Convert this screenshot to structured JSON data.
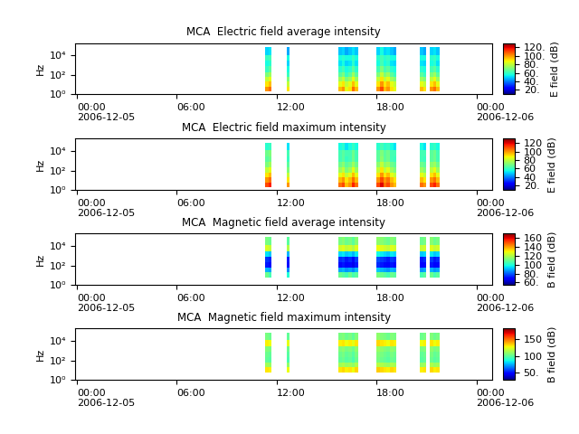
{
  "chart_data": [
    {
      "type": "heatmap",
      "title": "MCA  Electric field average intensity",
      "y_label": "Hz",
      "log": "y",
      "xlim": [
        -0.1,
        24.95
      ],
      "xticks": [
        {
          "value": 0,
          "label": "00:00\n2006-12-05"
        },
        {
          "value": 6,
          "label": "06:00"
        },
        {
          "value": 12,
          "label": "12:00"
        },
        {
          "value": 18,
          "label": "18:00"
        },
        {
          "value": 24,
          "label": "00:00\n2006-12-06"
        }
      ],
      "ylim": [
        1,
        200000
      ],
      "yticks": [
        {
          "value": 1,
          "label": "10⁰"
        },
        {
          "value": 100,
          "label": "10²"
        },
        {
          "value": 10000,
          "label": "10⁴"
        }
      ],
      "f_edges": [
        2,
        6,
        20,
        60,
        200,
        800,
        3000,
        12000,
        80000
      ],
      "segments": [
        [
          11.3,
          11.5,
          11.7
        ],
        [
          12.6,
          12.8
        ],
        [
          15.7,
          15.9,
          16.1,
          16.3,
          16.5,
          16.7,
          16.9
        ],
        [
          18.0,
          18.2,
          18.4,
          18.6,
          18.8,
          19.0,
          19.2
        ],
        [
          20.6,
          20.8,
          21.0
        ],
        [
          21.2,
          21.4,
          21.6,
          21.8
        ]
      ],
      "cells": [
        [
          100,
          105,
          90,
          95,
          100,
          85,
          90,
          105,
          95,
          100,
          110,
          95,
          100,
          90,
          85,
          95,
          90,
          100,
          105,
          95
        ],
        [
          90,
          95,
          80,
          85,
          90,
          80,
          85,
          95,
          85,
          90,
          100,
          90,
          95,
          85,
          80,
          85,
          80,
          90,
          95,
          85
        ],
        [
          80,
          85,
          70,
          75,
          80,
          70,
          75,
          85,
          75,
          80,
          90,
          80,
          85,
          75,
          70,
          75,
          70,
          80,
          85,
          75
        ],
        [
          70,
          75,
          60,
          65,
          70,
          60,
          65,
          75,
          65,
          70,
          80,
          70,
          75,
          65,
          60,
          65,
          60,
          70,
          75,
          65
        ],
        [
          60,
          65,
          55,
          58,
          62,
          55,
          58,
          65,
          58,
          62,
          70,
          62,
          65,
          58,
          55,
          58,
          55,
          62,
          65,
          58
        ],
        [
          55,
          58,
          50,
          52,
          55,
          50,
          52,
          58,
          52,
          55,
          62,
          55,
          58,
          52,
          50,
          52,
          50,
          55,
          58,
          52
        ],
        [
          60,
          62,
          55,
          55,
          58,
          55,
          55,
          60,
          55,
          58,
          62,
          58,
          60,
          55,
          55,
          55,
          55,
          58,
          60,
          55
        ],
        [
          50,
          52,
          45,
          48,
          50,
          45,
          48,
          52,
          48,
          50,
          55,
          50,
          52,
          48,
          45,
          48,
          45,
          50,
          52,
          48
        ]
      ],
      "colorbar_label": "E field (dB)",
      "colorbar_range": [
        10,
        130
      ],
      "colorbar_ticks": [
        {
          "value": 20,
          "label": "20."
        },
        {
          "value": 40,
          "label": "40."
        },
        {
          "value": 60,
          "label": "60."
        },
        {
          "value": 80,
          "label": "80."
        },
        {
          "value": 100,
          "label": "100."
        },
        {
          "value": 120,
          "label": "120."
        }
      ]
    },
    {
      "type": "heatmap",
      "title": "MCA  Electric field maximum intensity",
      "y_label": "Hz",
      "log": "y",
      "xlim": [
        -0.1,
        24.95
      ],
      "xticks": [
        {
          "value": 0,
          "label": "00:00\n2006-12-05"
        },
        {
          "value": 6,
          "label": "06:00"
        },
        {
          "value": 12,
          "label": "12:00"
        },
        {
          "value": 18,
          "label": "18:00"
        },
        {
          "value": 24,
          "label": "00:00\n2006-12-06"
        }
      ],
      "ylim": [
        1,
        200000
      ],
      "yticks": [
        {
          "value": 1,
          "label": "10⁰"
        },
        {
          "value": 100,
          "label": "10²"
        },
        {
          "value": 10000,
          "label": "10⁴"
        }
      ],
      "f_edges": [
        2,
        6,
        20,
        60,
        200,
        800,
        3000,
        12000,
        80000
      ],
      "segments": [
        [
          11.3,
          11.5,
          11.7
        ],
        [
          12.6,
          12.8
        ],
        [
          15.7,
          15.9,
          16.1,
          16.3,
          16.5,
          16.7,
          16.9
        ],
        [
          18.0,
          18.2,
          18.4,
          18.6,
          18.8,
          19.0,
          19.2
        ],
        [
          20.6,
          20.8,
          21.0
        ],
        [
          21.2,
          21.4,
          21.6,
          21.8
        ]
      ],
      "cells": [
        [
          110,
          115,
          100,
          105,
          110,
          95,
          100,
          115,
          105,
          110,
          120,
          105,
          110,
          100,
          95,
          105,
          100,
          110,
          115,
          105
        ],
        [
          100,
          105,
          90,
          95,
          100,
          90,
          95,
          105,
          95,
          100,
          110,
          100,
          105,
          95,
          90,
          95,
          90,
          100,
          105,
          95
        ],
        [
          90,
          95,
          80,
          85,
          90,
          80,
          85,
          95,
          85,
          90,
          100,
          90,
          95,
          85,
          80,
          85,
          80,
          90,
          95,
          85
        ],
        [
          80,
          85,
          70,
          75,
          80,
          70,
          75,
          85,
          75,
          80,
          90,
          80,
          85,
          75,
          70,
          75,
          70,
          80,
          85,
          75
        ],
        [
          70,
          75,
          65,
          68,
          72,
          65,
          68,
          75,
          68,
          72,
          80,
          72,
          75,
          68,
          65,
          68,
          65,
          72,
          75,
          68
        ],
        [
          65,
          68,
          60,
          62,
          65,
          60,
          62,
          68,
          62,
          65,
          72,
          65,
          68,
          62,
          60,
          62,
          60,
          65,
          68,
          62
        ],
        [
          68,
          70,
          62,
          62,
          65,
          62,
          62,
          68,
          62,
          65,
          70,
          65,
          68,
          62,
          62,
          62,
          62,
          65,
          68,
          62
        ],
        [
          58,
          60,
          52,
          55,
          58,
          52,
          55,
          60,
          55,
          58,
          62,
          58,
          60,
          55,
          52,
          55,
          52,
          58,
          60,
          55
        ]
      ],
      "colorbar_label": "E field (dB)",
      "colorbar_range": [
        10,
        130
      ],
      "colorbar_ticks": [
        {
          "value": 20,
          "label": "20."
        },
        40,
        60,
        80,
        100,
        120
      ]
    },
    {
      "type": "heatmap",
      "title": "MCA  Magnetic field average intensity",
      "y_label": "Hz",
      "log": "y",
      "xlim": [
        -0.1,
        24.95
      ],
      "xticks": [
        {
          "value": 0,
          "label": "00:00\n2006-12-05"
        },
        {
          "value": 6,
          "label": "06:00"
        },
        {
          "value": 12,
          "label": "12:00"
        },
        {
          "value": 18,
          "label": "18:00"
        },
        {
          "value": 24,
          "label": "00:00\n2006-12-06"
        }
      ],
      "ylim": [
        1,
        200000
      ],
      "yticks": [
        {
          "value": 1,
          "label": "10⁰"
        },
        {
          "value": 100,
          "label": "10²"
        },
        {
          "value": 10000,
          "label": "10⁴"
        }
      ],
      "f_edges": [
        2,
        6,
        20,
        60,
        200,
        800,
        3000,
        12000,
        80000
      ],
      "segments": [
        [
          11.3,
          11.5,
          11.7
        ],
        [
          12.6,
          12.8
        ],
        [
          15.7,
          15.9,
          16.1,
          16.3,
          16.5,
          16.7,
          16.9
        ],
        [
          18.0,
          18.2,
          18.4,
          18.6,
          18.8,
          19.0,
          19.2
        ],
        [
          20.6,
          20.8,
          21.0
        ],
        [
          21.2,
          21.4,
          21.6,
          21.8
        ]
      ],
      "cells": [
        [
          null,
          null,
          null,
          null,
          null,
          null,
          null,
          null,
          null,
          null,
          null,
          null,
          null,
          null,
          null,
          null,
          null,
          null,
          null,
          null
        ],
        [
          110,
          105,
          100,
          110,
          108,
          105,
          110,
          105,
          108,
          112,
          110,
          108,
          105,
          110,
          108,
          105,
          108,
          110,
          105,
          108
        ],
        [
          90,
          88,
          85,
          88,
          90,
          86,
          88,
          85,
          90,
          92,
          90,
          88,
          86,
          90,
          88,
          86,
          88,
          90,
          86,
          88
        ],
        [
          72,
          70,
          68,
          70,
          72,
          68,
          70,
          66,
          72,
          74,
          72,
          70,
          68,
          72,
          70,
          68,
          70,
          72,
          68,
          70
        ],
        [
          75,
          73,
          72,
          74,
          76,
          72,
          74,
          70,
          76,
          78,
          76,
          74,
          72,
          76,
          74,
          72,
          74,
          76,
          72,
          74
        ],
        [
          95,
          92,
          90,
          94,
          96,
          92,
          94,
          90,
          96,
          98,
          96,
          94,
          92,
          96,
          94,
          92,
          94,
          96,
          92,
          94
        ],
        [
          125,
          122,
          120,
          124,
          126,
          122,
          124,
          120,
          126,
          128,
          126,
          124,
          122,
          126,
          124,
          122,
          124,
          126,
          122,
          124
        ],
        [
          112,
          110,
          108,
          112,
          114,
          110,
          112,
          108,
          114,
          115,
          114,
          112,
          110,
          114,
          112,
          110,
          112,
          114,
          110,
          112
        ]
      ],
      "colorbar_label": "B field (dB)",
      "colorbar_range": [
        55,
        170
      ],
      "colorbar_ticks": [
        {
          "value": 60,
          "label": "60."
        },
        {
          "value": 80,
          "label": "80."
        },
        100,
        120,
        140,
        160
      ]
    },
    {
      "type": "heatmap",
      "title": "MCA  Magnetic field maximum intensity",
      "y_label": "Hz",
      "log": "y",
      "xlim": [
        -0.1,
        24.95
      ],
      "xticks": [
        {
          "value": 0,
          "label": "00:00\n2006-12-05"
        },
        {
          "value": 6,
          "label": "06:00"
        },
        {
          "value": 12,
          "label": "12:00"
        },
        {
          "value": 18,
          "label": "18:00"
        },
        {
          "value": 24,
          "label": "00:00\n2006-12-06"
        }
      ],
      "ylim": [
        1,
        200000
      ],
      "yticks": [
        {
          "value": 1,
          "label": "10⁰"
        },
        {
          "value": 100,
          "label": "10²"
        },
        {
          "value": 10000,
          "label": "10⁴"
        }
      ],
      "f_edges": [
        2,
        6,
        20,
        60,
        200,
        800,
        3000,
        12000,
        80000
      ],
      "segments": [
        [
          11.3,
          11.5,
          11.7
        ],
        [
          12.6,
          12.8
        ],
        [
          15.7,
          15.9,
          16.1,
          16.3,
          16.5,
          16.7,
          16.9
        ],
        [
          18.0,
          18.2,
          18.4,
          18.6,
          18.8,
          19.0,
          19.2
        ],
        [
          20.6,
          20.8,
          21.0
        ],
        [
          21.2,
          21.4,
          21.6,
          21.8
        ]
      ],
      "cells": [
        [
          null,
          null,
          null,
          null,
          null,
          null,
          null,
          null,
          null,
          null,
          null,
          null,
          null,
          null,
          null,
          null,
          null,
          null,
          null,
          null
        ],
        [
          130,
          128,
          125,
          130,
          132,
          128,
          130,
          126,
          132,
          134,
          132,
          130,
          128,
          132,
          130,
          128,
          130,
          132,
          128,
          130
        ],
        [
          112,
          110,
          108,
          112,
          114,
          110,
          112,
          108,
          114,
          115,
          114,
          112,
          110,
          114,
          112,
          110,
          112,
          114,
          110,
          112
        ],
        [
          100,
          98,
          96,
          100,
          102,
          98,
          100,
          96,
          102,
          104,
          102,
          100,
          98,
          102,
          100,
          98,
          100,
          102,
          98,
          100
        ],
        [
          102,
          100,
          98,
          102,
          104,
          100,
          102,
          98,
          104,
          106,
          104,
          102,
          100,
          104,
          102,
          100,
          102,
          104,
          100,
          102
        ],
        [
          106,
          104,
          102,
          106,
          108,
          104,
          106,
          102,
          108,
          110,
          108,
          106,
          104,
          108,
          106,
          104,
          106,
          108,
          104,
          106
        ],
        [
          128,
          126,
          124,
          128,
          130,
          126,
          128,
          124,
          130,
          132,
          130,
          128,
          126,
          130,
          128,
          126,
          128,
          130,
          126,
          128
        ],
        [
          104,
          102,
          100,
          104,
          106,
          102,
          104,
          100,
          106,
          108,
          106,
          104,
          102,
          106,
          104,
          102,
          104,
          106,
          102,
          104
        ]
      ],
      "colorbar_label": "B field (dB)",
      "colorbar_range": [
        30,
        180
      ],
      "colorbar_ticks": [
        {
          "value": 50,
          "label": "50."
        },
        100,
        150
      ]
    }
  ]
}
